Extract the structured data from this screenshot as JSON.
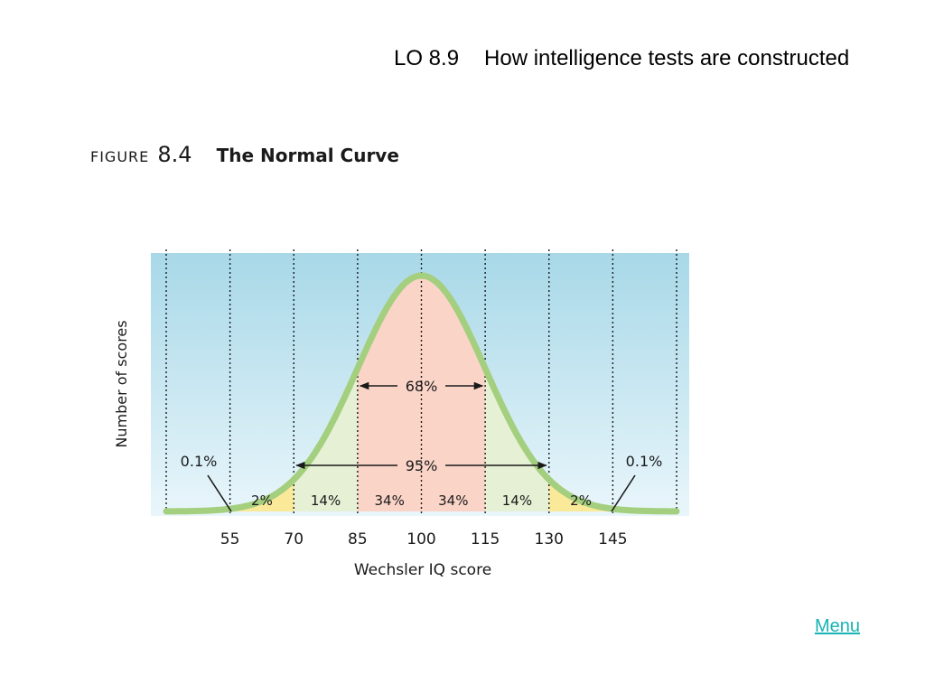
{
  "header": {
    "code": "LO 8.9",
    "title": "How intelligence tests are constructed"
  },
  "figure": {
    "label": "FIGURE",
    "number": "8.4",
    "title": "The Normal Curve"
  },
  "colors": {
    "sky_top": "#a8d8e8",
    "sky_bottom": "#e9f6fb",
    "curve": "#a3cf7e",
    "band_center": "#fbd4c8",
    "band_inner": "#e6f0d5",
    "band_outer": "#fbe99a",
    "band_tail": "#f27a7a"
  },
  "menu": {
    "label": "Menu"
  },
  "chart_data": {
    "type": "area",
    "title": "The Normal Curve",
    "xlabel": "Wechsler IQ score",
    "ylabel": "Number of scores",
    "mean": 100,
    "sd": 15,
    "xlim": [
      40,
      160
    ],
    "x_ticks": [
      55,
      70,
      85,
      100,
      115,
      130,
      145
    ],
    "grid_x": [
      40,
      55,
      70,
      85,
      100,
      115,
      130,
      145,
      160
    ],
    "bands": [
      {
        "from": 55,
        "to": 70,
        "label": "2%"
      },
      {
        "from": 70,
        "to": 85,
        "label": "14%"
      },
      {
        "from": 85,
        "to": 100,
        "label": "34%"
      },
      {
        "from": 100,
        "to": 115,
        "label": "34%"
      },
      {
        "from": 115,
        "to": 130,
        "label": "14%"
      },
      {
        "from": 130,
        "to": 145,
        "label": "2%"
      }
    ],
    "tails": [
      {
        "side": "left",
        "label": "0.1%"
      },
      {
        "side": "right",
        "label": "0.1%"
      }
    ],
    "spans": [
      {
        "from": 85,
        "to": 115,
        "label": "68%"
      },
      {
        "from": 70,
        "to": 130,
        "label": "95%"
      }
    ]
  }
}
